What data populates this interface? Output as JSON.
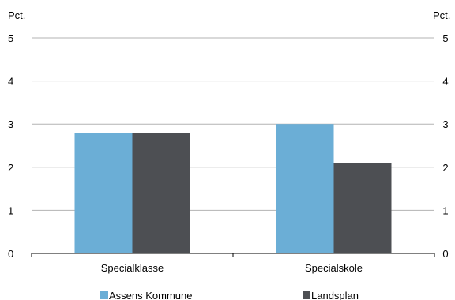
{
  "chart_data": {
    "type": "bar",
    "unit_left": "Pct.",
    "unit_right": "Pct.",
    "categories": [
      "Specialklasse",
      "Specialskole"
    ],
    "series": [
      {
        "name": "Assens Kommune",
        "values": [
          2.8,
          3.0
        ],
        "color": "#6baed6"
      },
      {
        "name": "Landsplan",
        "values": [
          2.8,
          2.1
        ],
        "color": "#4d4f53"
      }
    ],
    "ylim": [
      0,
      5
    ],
    "yticks": [
      "0",
      "1",
      "2",
      "3",
      "4",
      "5"
    ],
    "grid": true,
    "legend": "bottom"
  }
}
